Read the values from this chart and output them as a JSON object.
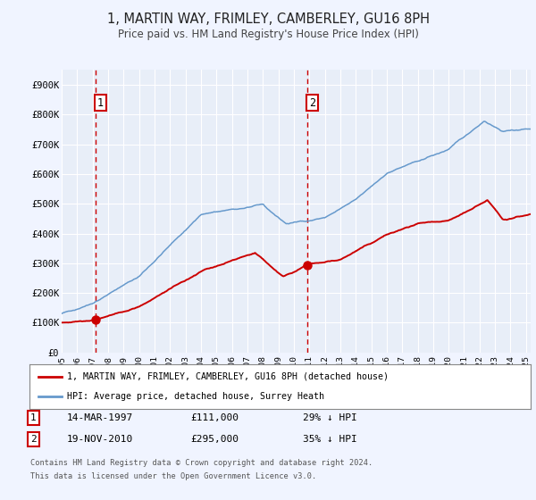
{
  "title": "1, MARTIN WAY, FRIMLEY, CAMBERLEY, GU16 8PH",
  "subtitle": "Price paid vs. HM Land Registry's House Price Index (HPI)",
  "xlim": [
    1995.0,
    2025.3
  ],
  "ylim": [
    0,
    950000
  ],
  "yticks": [
    0,
    100000,
    200000,
    300000,
    400000,
    500000,
    600000,
    700000,
    800000,
    900000
  ],
  "ytick_labels": [
    "£0",
    "£100K",
    "£200K",
    "£300K",
    "£400K",
    "£500K",
    "£600K",
    "£700K",
    "£800K",
    "£900K"
  ],
  "xticks": [
    1995,
    1996,
    1997,
    1998,
    1999,
    2000,
    2001,
    2002,
    2003,
    2004,
    2005,
    2006,
    2007,
    2008,
    2009,
    2010,
    2011,
    2012,
    2013,
    2014,
    2015,
    2016,
    2017,
    2018,
    2019,
    2020,
    2021,
    2022,
    2023,
    2024,
    2025
  ],
  "sale1_date": 1997.21,
  "sale1_price": 111000,
  "sale1_label": "14-MAR-1997",
  "sale1_amount": "£111,000",
  "sale1_hpi": "29% ↓ HPI",
  "sale2_date": 2010.89,
  "sale2_price": 295000,
  "sale2_label": "19-NOV-2010",
  "sale2_amount": "£295,000",
  "sale2_hpi": "35% ↓ HPI",
  "red_color": "#cc0000",
  "blue_color": "#6699cc",
  "bg_color": "#f0f4ff",
  "plot_bg": "#e8eef8",
  "grid_color": "#ffffff",
  "legend_label_red": "1, MARTIN WAY, FRIMLEY, CAMBERLEY, GU16 8PH (detached house)",
  "legend_label_blue": "HPI: Average price, detached house, Surrey Heath",
  "footnote1": "Contains HM Land Registry data © Crown copyright and database right 2024.",
  "footnote2": "This data is licensed under the Open Government Licence v3.0."
}
